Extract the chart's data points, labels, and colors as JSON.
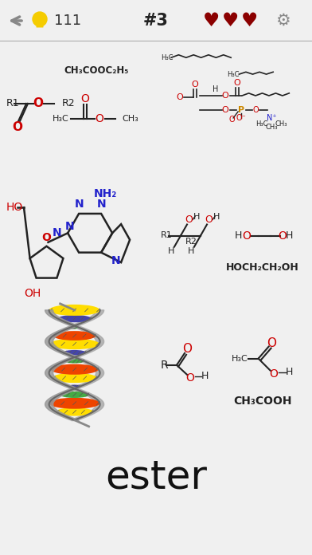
{
  "bg_color": "#f0f0f0",
  "header_bg": "#ffffff",
  "cell_bg": "#c0c0c0",
  "answer_text": "ester",
  "answer_fontsize": 36,
  "answer_area_color": "#f5f5f5",
  "heart_color": "#8b0000",
  "title_text": "#3",
  "score_text": "111",
  "red_color": "#cc0000",
  "blue_color": "#2222cc",
  "dark_color": "#222222",
  "orange_color": "#cc6600",
  "gray_strand": "#888888",
  "dna_colors": [
    "#4444aa",
    "#ffdd00",
    "#ee4400",
    "#44aa44"
  ]
}
